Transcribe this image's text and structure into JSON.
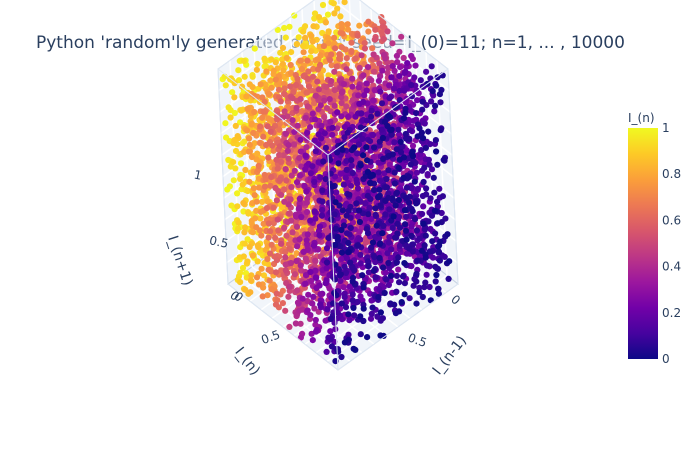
{
  "chart_data": {
    "type": "scatter",
    "dimensions": "3d",
    "title": "Python 'random'ly generated points; seed=I_(0)=11; n=1, ... , 10000",
    "n_points": 10000,
    "x_axis": {
      "label": "I_(n-1)",
      "range": [
        0,
        1
      ],
      "ticks": [
        "0",
        "0.5"
      ]
    },
    "y_axis": {
      "label": "I_(n)",
      "range": [
        0,
        1
      ],
      "ticks": [
        "0",
        "0.5"
      ]
    },
    "z_axis": {
      "label": "I_(n+1)",
      "range": [
        0,
        1
      ],
      "ticks": [
        "0",
        "0.5",
        "1"
      ]
    },
    "marker_color_variable": "I_(n)",
    "colorbar": {
      "title": "I_(n)",
      "range": [
        0,
        1
      ],
      "ticks": [
        "0",
        "0.2",
        "0.4",
        "0.6",
        "0.8",
        "1"
      ],
      "colorscale": [
        "#0d0887",
        "#46039f",
        "#7201a8",
        "#9c179e",
        "#bd3786",
        "#d8576b",
        "#ed7953",
        "#fb9f3a",
        "#fdca26",
        "#f0f921"
      ]
    },
    "grid": true
  }
}
